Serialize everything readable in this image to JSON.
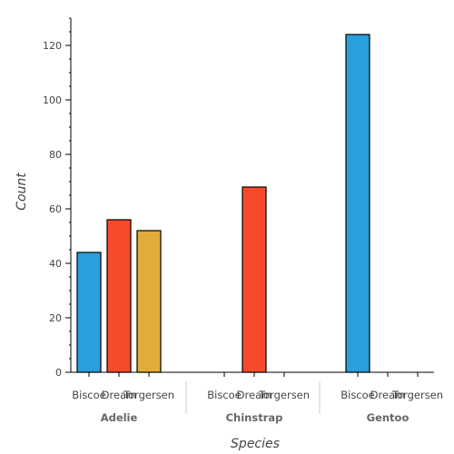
{
  "chart_data": {
    "type": "bar",
    "xlabel": "Species",
    "ylabel": "Count",
    "ylim": [
      0,
      130
    ],
    "yticks": [
      0,
      20,
      40,
      60,
      80,
      100,
      120
    ],
    "grid": false,
    "groups": [
      {
        "name": "Adelie",
        "bars": [
          {
            "island": "Biscoe",
            "value": 44
          },
          {
            "island": "Dream",
            "value": 56
          },
          {
            "island": "Torgersen",
            "value": 52
          }
        ]
      },
      {
        "name": "Chinstrap",
        "bars": [
          {
            "island": "Biscoe",
            "value": 0
          },
          {
            "island": "Dream",
            "value": 68
          },
          {
            "island": "Torgersen",
            "value": 0
          }
        ]
      },
      {
        "name": "Gentoo",
        "bars": [
          {
            "island": "Biscoe",
            "value": 124
          },
          {
            "island": "Dream",
            "value": 0
          },
          {
            "island": "Torgersen",
            "value": 0
          }
        ]
      }
    ],
    "colors": {
      "Biscoe": "#2b9fdb",
      "Dream": "#f74a2b",
      "Torgersen": "#e2ac3a"
    }
  }
}
